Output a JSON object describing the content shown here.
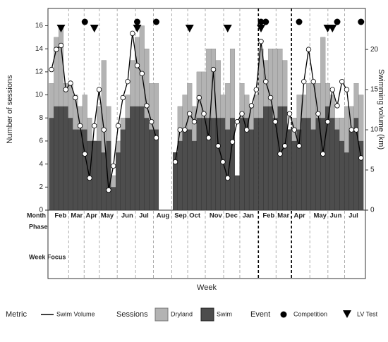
{
  "chart_data": {
    "type": "bar",
    "stacked": true,
    "ylabel": "Number of sessions",
    "y2label": "Swimming volume (km)",
    "xlabel": "Week",
    "ylim": [
      0,
      17.5
    ],
    "yticks": [
      0,
      2,
      4,
      6,
      8,
      10,
      12,
      14,
      16
    ],
    "y2lim": [
      0,
      25.1
    ],
    "y2ticks": [
      0,
      5,
      10,
      15,
      20
    ],
    "series": [
      {
        "name": "Swim",
        "color": "#4d4d4d",
        "values": [
          8,
          9,
          9,
          9,
          8,
          7,
          7,
          7,
          6,
          6,
          6,
          5,
          6,
          2,
          5,
          7,
          8,
          9,
          9,
          9,
          8,
          7,
          7,
          null,
          null,
          null,
          5,
          6,
          7,
          7,
          6,
          8,
          8,
          8,
          8,
          8,
          8,
          7,
          8,
          3,
          8,
          8,
          7,
          8,
          8,
          9,
          9,
          8,
          9,
          9,
          7,
          6,
          7,
          8,
          8,
          7,
          8,
          8,
          9,
          8,
          7,
          6,
          5,
          7,
          8,
          6
        ]
      },
      {
        "name": "Dryland",
        "color": "#b3b3b3",
        "values": [
          3,
          6,
          7,
          2,
          3,
          3,
          2,
          3,
          2,
          0,
          3,
          8,
          3,
          1,
          1,
          1,
          2,
          4,
          6,
          7,
          6,
          4,
          4,
          null,
          null,
          null,
          0,
          3,
          3,
          4,
          3,
          4,
          4,
          6,
          6,
          5,
          2,
          4,
          6,
          0,
          3,
          2,
          2,
          2,
          6,
          4,
          5,
          6,
          5,
          4,
          0,
          2,
          3,
          2,
          3,
          4,
          3,
          7,
          2,
          2,
          1,
          2,
          4,
          2,
          3,
          4
        ]
      },
      {
        "name": "Swim Volume",
        "axis": "y2",
        "color": "#000000",
        "values": [
          17.5,
          20,
          20.5,
          15,
          15.8,
          14,
          10.5,
          7,
          4,
          10.5,
          15,
          10,
          2.5,
          5.5,
          10.5,
          14,
          16,
          22,
          18,
          17,
          13,
          11,
          9,
          null,
          null,
          null,
          6,
          10,
          10,
          12,
          11,
          14,
          12,
          9,
          17.5,
          8,
          6,
          4,
          8.5,
          11,
          12,
          10,
          13,
          15,
          21,
          16,
          14,
          11,
          7,
          8,
          12,
          10,
          8,
          16,
          20,
          16,
          12,
          7,
          11,
          15,
          13,
          16,
          15,
          10,
          10,
          6.5
        ]
      }
    ],
    "events": [
      {
        "name": "Competition",
        "weeks": [
          7,
          18,
          22,
          44,
          45,
          52,
          60,
          65
        ]
      },
      {
        "name": "LV Test",
        "weeks": [
          2,
          9,
          18,
          29,
          37,
          44,
          58,
          59
        ]
      }
    ],
    "months": {
      "labels": [
        "Feb",
        "Mar",
        "Apr",
        "May",
        "Jun",
        "Jul",
        "Aug",
        "Sep",
        "Oct",
        "Nov",
        "Dec",
        "Jan",
        "Feb",
        "Mar",
        "Apr",
        "May",
        "Jun",
        "Jul"
      ],
      "weeks": [
        1.9,
        5.3,
        8.4,
        11.7,
        15.9,
        19.4,
        23.4,
        27.1,
        30.1,
        34.5,
        37.8,
        41.3,
        45.6,
        48.7,
        52.1,
        56.4,
        59.7,
        63.4
      ]
    },
    "row_labels": [
      "Month",
      "Phase",
      "Week\nFocus"
    ],
    "legend_titles": [
      "Metric",
      "Sessions",
      "Event"
    ]
  }
}
